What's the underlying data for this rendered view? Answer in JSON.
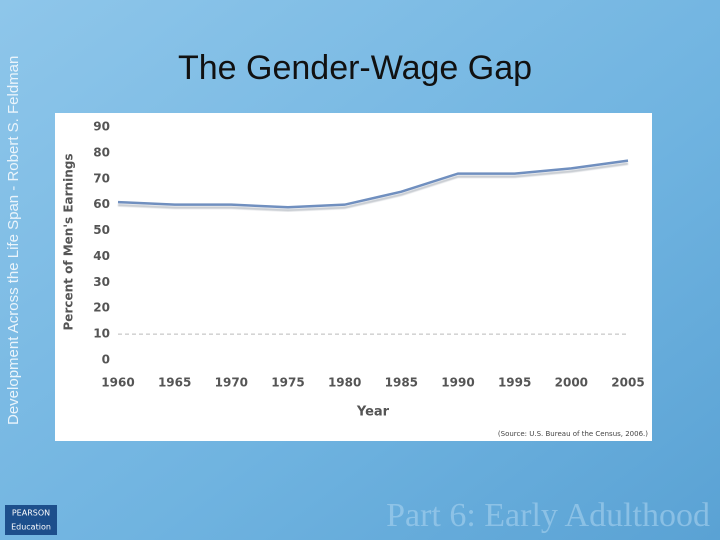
{
  "slide": {
    "side_text": "Development Across the Life Span - Robert S. Feldman",
    "footer": "Part 6: Early Adulthood",
    "logo_top": "PEARSON",
    "logo_bottom": "Education"
  },
  "chart_data": {
    "type": "line",
    "title": "The Gender-Wage Gap",
    "x_label": "Year",
    "y_label": "Percent of Men's Earnings",
    "source": "(Source: U.S. Bureau of the Census, 2006.)",
    "x": [
      1960,
      1965,
      1970,
      1975,
      1980,
      1985,
      1990,
      1995,
      2000,
      2005
    ],
    "series": [
      {
        "name": "Percent of Men's Earnings",
        "color": "#6f8fbf",
        "values": [
          61,
          60,
          60,
          59,
          60,
          65,
          72,
          72,
          74,
          77
        ]
      }
    ],
    "xlim": [
      1960,
      2005
    ],
    "xticks": [
      1960,
      1965,
      1970,
      1975,
      1980,
      1985,
      1990,
      1995,
      2000,
      2005
    ],
    "ylim": [
      0,
      90
    ],
    "yticks": [
      0,
      10,
      20,
      30,
      40,
      50,
      60,
      70,
      80,
      90
    ],
    "reference_line": 10,
    "grid": false
  }
}
